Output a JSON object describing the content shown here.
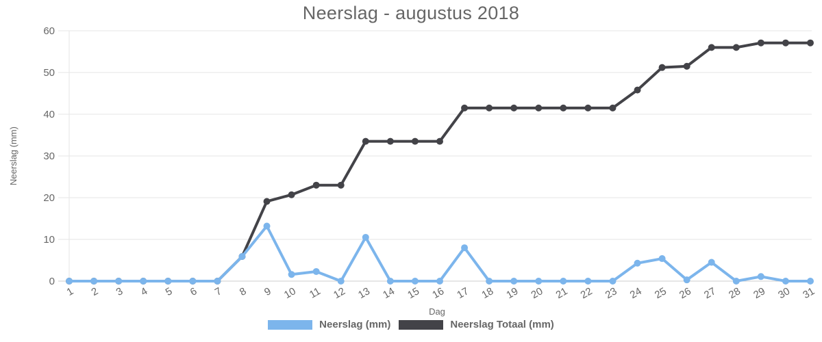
{
  "chart_data": {
    "type": "line",
    "title": "Neerslag - augustus 2018",
    "xlabel": "Dag",
    "ylabel": "Neerslag (mm)",
    "ylim": [
      0,
      60
    ],
    "yticks": [
      0,
      10,
      20,
      30,
      40,
      50,
      60
    ],
    "grid": true,
    "legend_position": "bottom",
    "categories": [
      "1",
      "2",
      "3",
      "4",
      "5",
      "6",
      "7",
      "8",
      "9",
      "10",
      "11",
      "12",
      "13",
      "14",
      "15",
      "16",
      "17",
      "18",
      "19",
      "20",
      "21",
      "22",
      "23",
      "24",
      "25",
      "26",
      "27",
      "28",
      "29",
      "30",
      "31"
    ],
    "series": [
      {
        "name": "Neerslag (mm)",
        "color": "#7cb5ec",
        "values": [
          0,
          0,
          0,
          0,
          0,
          0,
          0,
          5.9,
          13.2,
          1.6,
          2.3,
          0,
          10.5,
          0,
          0,
          0,
          8.0,
          0,
          0,
          0,
          0,
          0,
          0,
          4.3,
          5.4,
          0.3,
          4.5,
          0,
          1.1,
          0,
          0
        ]
      },
      {
        "name": "Neerslag Totaal (mm)",
        "color": "#434348",
        "values": [
          0,
          0,
          0,
          0,
          0,
          0,
          0,
          5.9,
          19.1,
          20.7,
          23.0,
          23.0,
          33.5,
          33.5,
          33.5,
          33.5,
          41.5,
          41.5,
          41.5,
          41.5,
          41.5,
          41.5,
          41.5,
          45.8,
          51.2,
          51.5,
          56.0,
          56.0,
          57.1,
          57.1,
          57.1
        ]
      }
    ]
  },
  "legend": {
    "items": [
      {
        "label": "Neerslag (mm)",
        "color": "#7cb5ec"
      },
      {
        "label": "Neerslag Totaal (mm)",
        "color": "#434348"
      }
    ]
  }
}
